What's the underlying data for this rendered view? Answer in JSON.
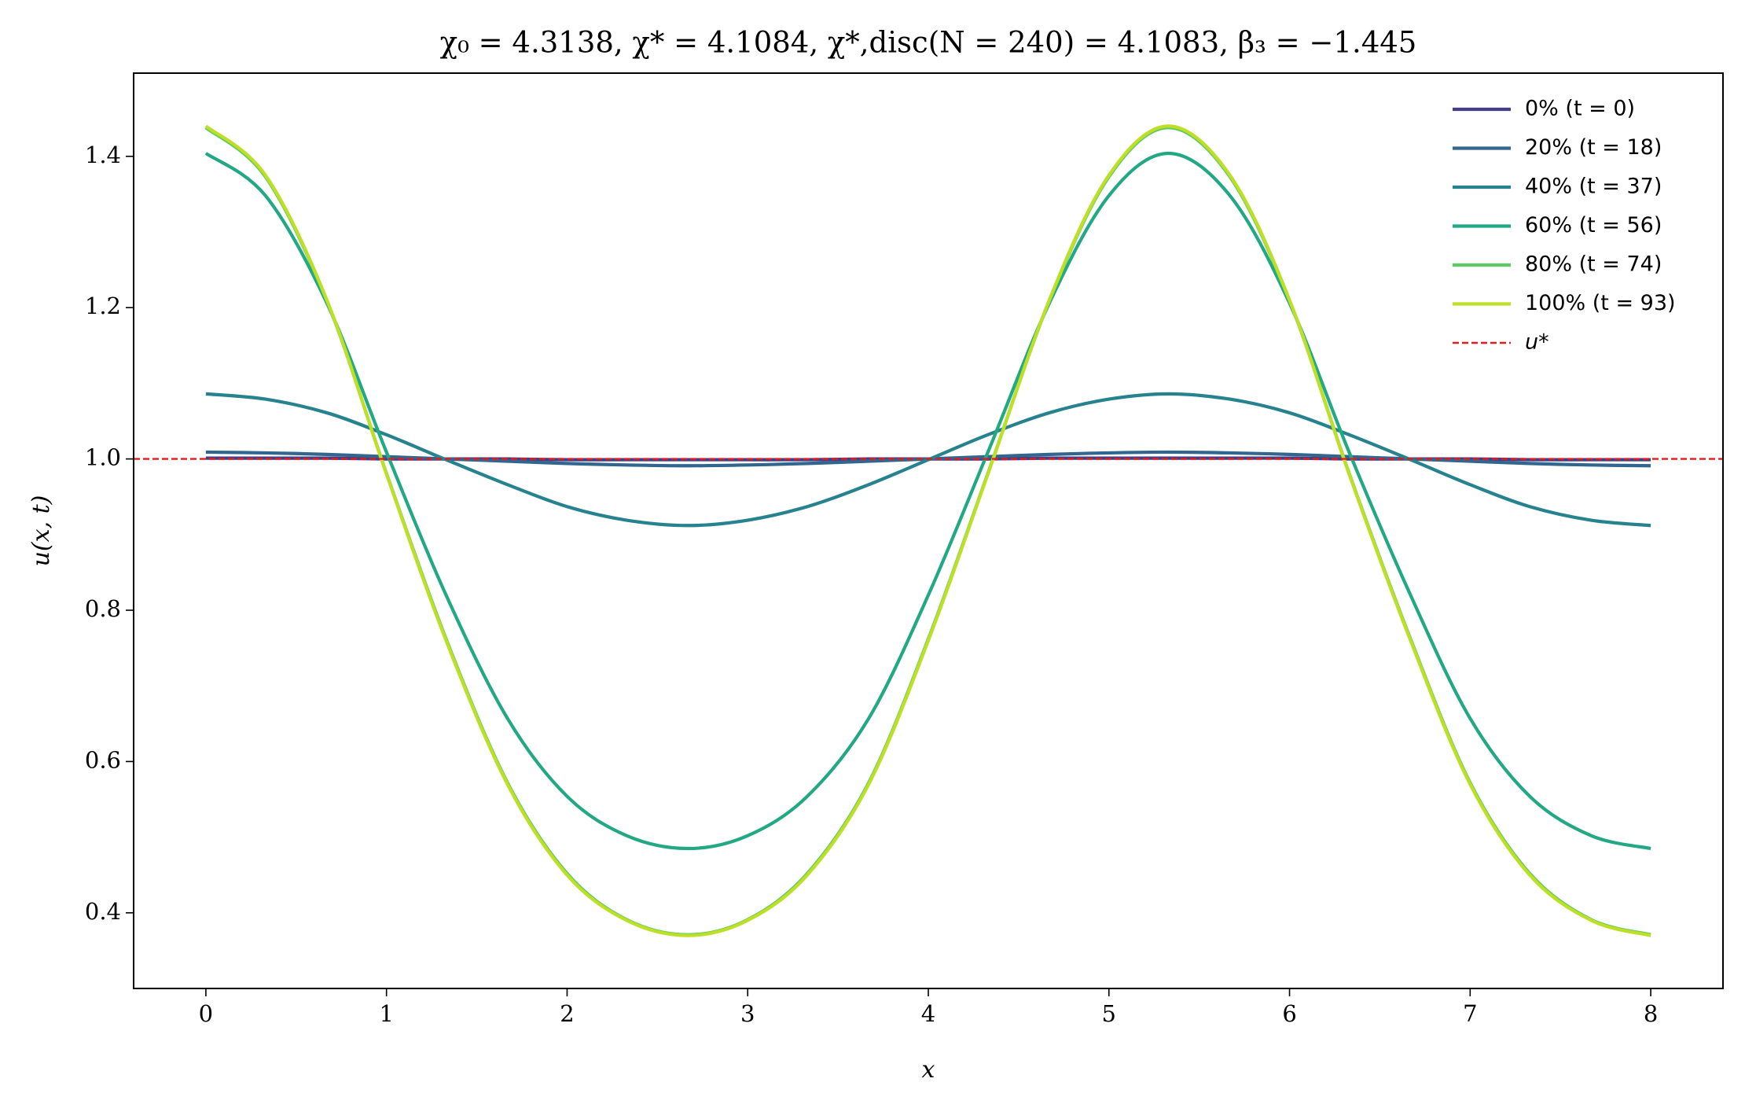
{
  "chart_data": {
    "type": "line",
    "title": "χ₀ = 4.3138,  χ* = 4.1084,  χ*,disc(N = 240) = 4.1083,  β₃ = −1.445",
    "x_label": "x",
    "y_label": "u(x, t)",
    "x": [
      0,
      0.33,
      0.67,
      1,
      1.33,
      1.67,
      2,
      2.33,
      2.67,
      3,
      3.33,
      3.67,
      4,
      4.33,
      4.67,
      5,
      5.33,
      5.67,
      6,
      6.33,
      6.67,
      7,
      7.33,
      7.67,
      8
    ],
    "series": [
      {
        "name": "0% (t = 0)",
        "color": "#433e85",
        "values": [
          1.001,
          1.001,
          1.001,
          1.0,
          1.0,
          1.0,
          0.999,
          0.999,
          0.999,
          0.999,
          0.999,
          1.0,
          1.0,
          1.0,
          1.001,
          1.001,
          1.001,
          1.001,
          1.001,
          1.0,
          1.0,
          1.0,
          0.999,
          0.999,
          0.999
        ]
      },
      {
        "name": "20% (t = 18)",
        "color": "#31668e",
        "values": [
          1.009,
          1.008,
          1.006,
          1.003,
          1.0,
          0.997,
          0.994,
          0.992,
          0.991,
          0.992,
          0.994,
          0.997,
          1.0,
          1.003,
          1.006,
          1.008,
          1.009,
          1.008,
          1.006,
          1.003,
          1.0,
          0.997,
          0.994,
          0.992,
          0.991
        ]
      },
      {
        "name": "40% (t = 37)",
        "color": "#26828e",
        "values": [
          1.086,
          1.079,
          1.061,
          1.032,
          0.999,
          0.966,
          0.937,
          0.919,
          0.912,
          0.919,
          0.937,
          0.966,
          0.999,
          1.032,
          1.061,
          1.079,
          1.086,
          1.079,
          1.061,
          1.032,
          0.999,
          0.966,
          0.937,
          0.919,
          0.912
        ]
      },
      {
        "name": "60% (t = 56)",
        "color": "#22a884",
        "values": [
          1.404,
          1.348,
          1.206,
          1.009,
          0.82,
          0.657,
          0.554,
          0.502,
          0.485,
          0.502,
          0.554,
          0.657,
          0.82,
          1.009,
          1.206,
          1.348,
          1.404,
          1.348,
          1.206,
          1.009,
          0.82,
          0.657,
          0.554,
          0.502,
          0.485
        ]
      },
      {
        "name": "80% (t = 74)",
        "color": "#5ec962",
        "values": [
          1.438,
          1.373,
          1.209,
          0.981,
          0.762,
          0.572,
          0.452,
          0.391,
          0.371,
          0.391,
          0.452,
          0.572,
          0.762,
          0.981,
          1.209,
          1.373,
          1.438,
          1.373,
          1.209,
          0.981,
          0.762,
          0.572,
          0.452,
          0.391,
          0.371
        ]
      },
      {
        "name": "100% (t = 93)",
        "color": "#bddf26",
        "values": [
          1.44,
          1.375,
          1.21,
          0.98,
          0.76,
          0.57,
          0.45,
          0.39,
          0.37,
          0.39,
          0.45,
          0.57,
          0.76,
          0.98,
          1.21,
          1.375,
          1.44,
          1.375,
          1.21,
          0.98,
          0.76,
          0.57,
          0.45,
          0.39,
          0.37
        ]
      }
    ],
    "reference_line": {
      "name": "u*",
      "value": 1,
      "color": "#e41a1c",
      "dashed": true
    },
    "xlim": [
      -0.4,
      8.4
    ],
    "ylim": [
      0.3,
      1.51
    ],
    "xticks": [
      0,
      1,
      2,
      3,
      4,
      5,
      6,
      7,
      8
    ],
    "yticks": [
      {
        "value": 0.4,
        "label": "0.4"
      },
      {
        "value": 0.6,
        "label": "0.6"
      },
      {
        "value": 0.8,
        "label": "0.8"
      },
      {
        "value": 1.0,
        "label": "1.0"
      },
      {
        "value": 1.2,
        "label": "1.2"
      },
      {
        "value": 1.4,
        "label": "1.4"
      }
    ],
    "grid": false,
    "legend": "upper right"
  }
}
